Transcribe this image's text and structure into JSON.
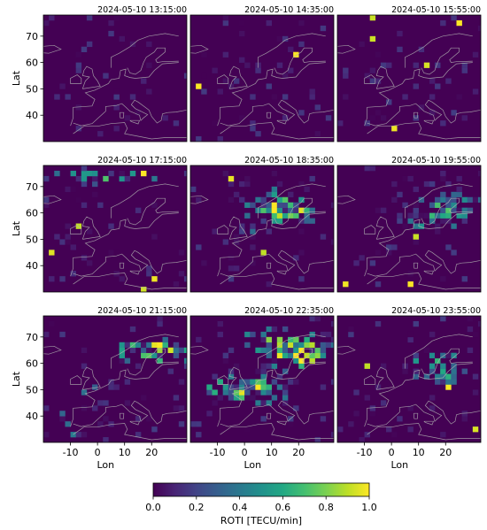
{
  "chart_data": {
    "type": "heatmap",
    "grid": {
      "rows": 3,
      "cols": 3
    },
    "xlabel": "Lon",
    "ylabel": "Lat",
    "xlim": [
      -20,
      33
    ],
    "ylim": [
      30,
      78
    ],
    "x_ticks": [
      -10,
      0,
      10,
      20
    ],
    "y_ticks": [
      40,
      50,
      60,
      70
    ],
    "colorbar": {
      "label": "ROTI [TECU/min]",
      "vmin": 0.0,
      "vmax": 1.0,
      "ticks": [
        "0.0",
        "0.2",
        "0.4",
        "0.6",
        "0.8",
        "1.0"
      ],
      "colormap": "viridis",
      "orientation": "horizontal",
      "placement": "bottom"
    },
    "panels": [
      {
        "title": "2024-05-10 13:15:00",
        "activity": 0.05
      },
      {
        "title": "2024-05-10 14:35:00",
        "activity": 0.06
      },
      {
        "title": "2024-05-10 15:55:00",
        "activity": 0.04
      },
      {
        "title": "2024-05-10 17:15:00",
        "activity": 0.12
      },
      {
        "title": "2024-05-10 18:35:00",
        "activity": 0.75
      },
      {
        "title": "2024-05-10 19:55:00",
        "activity": 0.55
      },
      {
        "title": "2024-05-10 21:15:00",
        "activity": 0.85
      },
      {
        "title": "2024-05-10 22:35:00",
        "activity": 1.0
      },
      {
        "title": "2024-05-10 23:55:00",
        "activity": 0.35
      }
    ]
  }
}
